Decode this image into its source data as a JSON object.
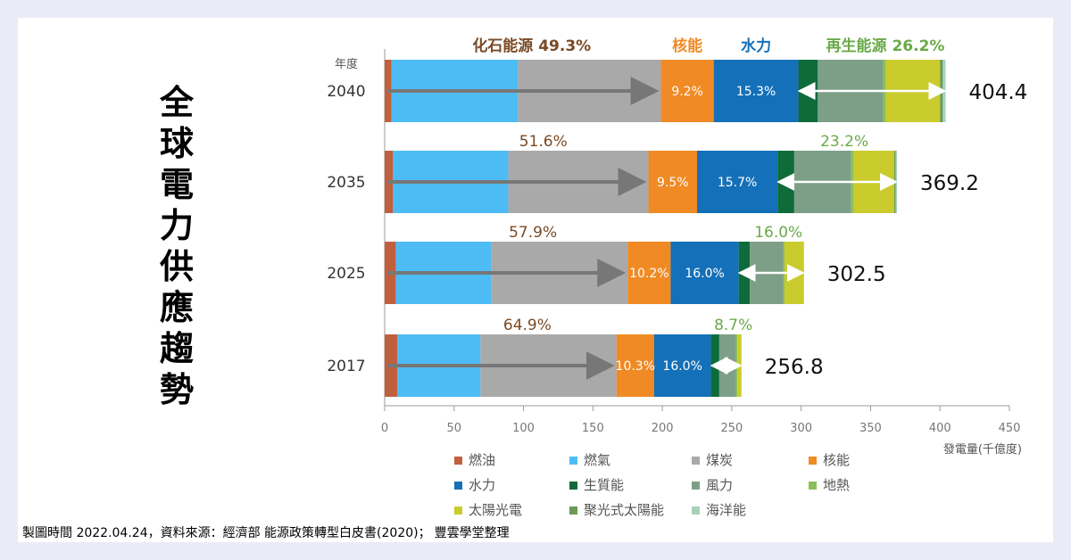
{
  "title": "全球電力供應趨勢",
  "footer": {
    "made": "製圖時間 2022.04.24，資料來源：經濟部 能源政策轉型白皮書(2020)；",
    "credit": "豐雲學堂整理"
  },
  "chart_data": {
    "type": "bar",
    "orientation": "horizontal-stacked",
    "ylabel": "年度",
    "xlabel": "發電量(千億度)",
    "xlim": [
      0,
      450
    ],
    "xticks": [
      0,
      50,
      100,
      150,
      200,
      250,
      300,
      350,
      400,
      450
    ],
    "categories": [
      "2040",
      "2035",
      "2025",
      "2017"
    ],
    "group_labels": {
      "fossil": "化石能源 49.3%",
      "nuclear": "核能",
      "hydro": "水力",
      "renewable": "再生能源 26.2%"
    },
    "series": [
      {
        "name": "燃油",
        "color": "#c0603f",
        "values": [
          5,
          6,
          8,
          9
        ]
      },
      {
        "name": "燃氣",
        "color": "#4dbcf5",
        "values": [
          91,
          83,
          69,
          60
        ]
      },
      {
        "name": "煤炭",
        "color": "#a9a9a9",
        "values": [
          103,
          101,
          98,
          98
        ]
      },
      {
        "name": "核能",
        "color": "#f08a24",
        "values": [
          38,
          35,
          31,
          27
        ]
      },
      {
        "name": "水力",
        "color": "#1470b8",
        "values": [
          61,
          58,
          49,
          41
        ]
      },
      {
        "name": "生質能",
        "color": "#0e6b3a",
        "values": [
          14,
          12,
          8,
          6
        ]
      },
      {
        "name": "風力",
        "color": "#7d9f87",
        "values": [
          47,
          41,
          24,
          12
        ]
      },
      {
        "name": "地熱",
        "color": "#8cbf5a",
        "values": [
          2,
          2,
          1,
          1
        ]
      },
      {
        "name": "太陽光電",
        "color": "#c9cc2c",
        "values": [
          39,
          29,
          14,
          3
        ]
      },
      {
        "name": "聚光式太陽能",
        "color": "#6a9a55",
        "values": [
          2,
          1,
          0,
          0
        ]
      },
      {
        "name": "海洋能",
        "color": "#a6d3b8",
        "values": [
          2,
          1,
          0,
          0
        ]
      }
    ],
    "totals": [
      404.4,
      369.2,
      302.5,
      256.8
    ],
    "fossil_pct": [
      "49.3%",
      "51.6%",
      "57.9%",
      "64.9%"
    ],
    "nuclear_pct": [
      "9.2%",
      "9.5%",
      "10.2%",
      "10.3%"
    ],
    "hydro_pct": [
      "15.3%",
      "15.7%",
      "16.0%",
      "16.0%"
    ],
    "renewable_pct": [
      "26.2%",
      "23.2%",
      "16.0%",
      "8.7%"
    ],
    "legend": [
      "燃油",
      "燃氣",
      "煤炭",
      "核能",
      "水力",
      "生質能",
      "風力",
      "地熱",
      "太陽光電",
      "聚光式太陽能",
      "海洋能"
    ]
  }
}
